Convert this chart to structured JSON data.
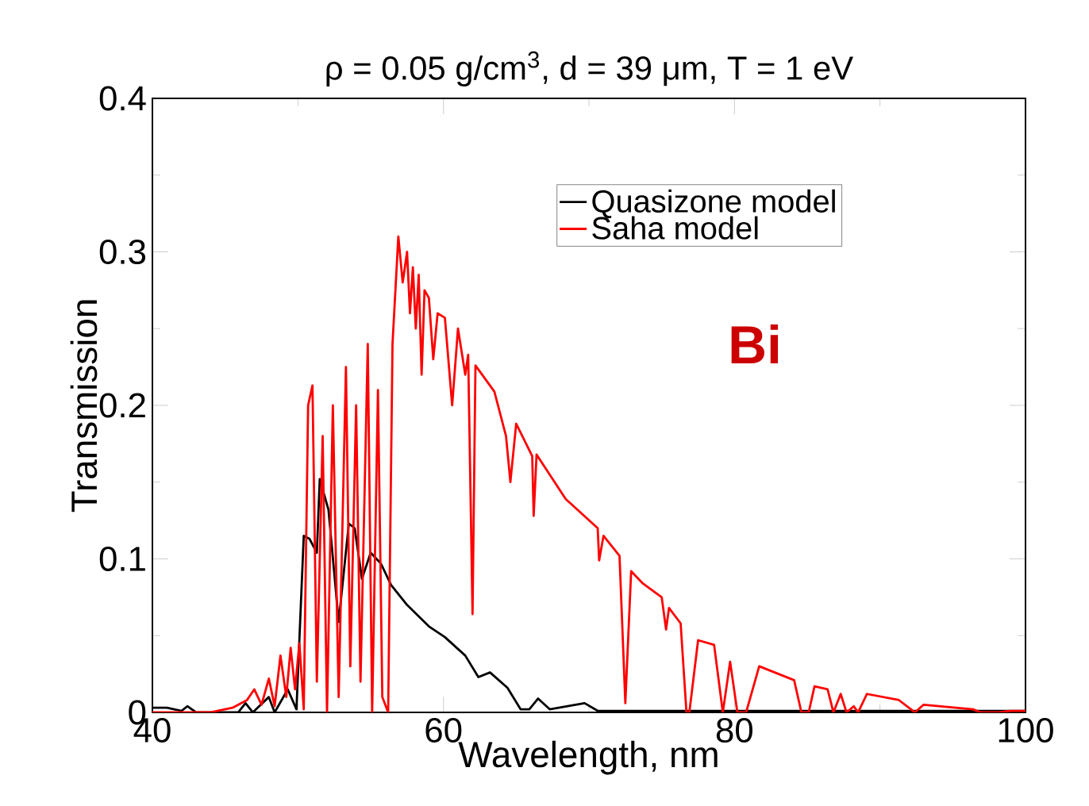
{
  "chart_data": {
    "type": "line",
    "title": "ρ = 0.05 g/cm$^{3}$, d = 39 μm, T = 1 eV",
    "xlabel": "Wavelength, nm",
    "ylabel": "Transmission",
    "annotations": [
      "Bi"
    ],
    "xlim": [
      40,
      100
    ],
    "ylim": [
      0,
      0.4
    ],
    "xticks": [
      40,
      60,
      80,
      100
    ],
    "yticks": [
      0,
      0.1,
      0.2,
      0.3,
      0.4
    ],
    "legend": "top right",
    "grid": false,
    "marker": "none",
    "line_style": "solid",
    "series": [
      {
        "name": "Quasizone model",
        "color": "#000000",
        "x": [
          40,
          41,
          42,
          42.4,
          43,
          45.9,
          46.4,
          46.9,
          48.0,
          48.4,
          49.3,
          49.9,
          50.4,
          50.8,
          51.3,
          51.5,
          52.1,
          52.8,
          53.5,
          53.9,
          54.4,
          55.0,
          55.7,
          56.4,
          57.5,
          59.0,
          60.1,
          61.5,
          62.4,
          63.2,
          64.4,
          65.3,
          65.9,
          66.5,
          67.3,
          69.7,
          70.6,
          80,
          90,
          100
        ],
        "values": [
          0.003,
          0.003,
          0.001,
          0.004,
          0,
          0,
          0.006,
          0,
          0.01,
          0,
          0.015,
          0.002,
          0.115,
          0.113,
          0.104,
          0.152,
          0.132,
          0.059,
          0.123,
          0.12,
          0.087,
          0.104,
          0.097,
          0.083,
          0.07,
          0.056,
          0.049,
          0.037,
          0.023,
          0.026,
          0.016,
          0.002,
          0.002,
          0.009,
          0.002,
          0.006,
          0.001,
          0.001,
          0.001,
          0.001
        ]
      },
      {
        "name": "Saha model",
        "color": "#ff0000",
        "x": [
          40,
          44,
          45.5,
          46.5,
          47,
          47.5,
          48,
          48.4,
          48.8,
          49.2,
          49.5,
          49.8,
          50.1,
          50.4,
          50.7,
          51.0,
          51.3,
          51.7,
          52.0,
          52.4,
          52.8,
          53.3,
          53.6,
          54.0,
          54.3,
          54.8,
          55.1,
          55.5,
          55.8,
          56.2,
          56.5,
          56.9,
          57.2,
          57.5,
          57.7,
          57.9,
          58.1,
          58.3,
          58.5,
          58.7,
          59.0,
          59.3,
          59.6,
          60.1,
          60.6,
          61.0,
          61.5,
          61.7,
          62.0,
          62.2,
          63.5,
          64.3,
          64.6,
          65.0,
          66.1,
          66.2,
          66.4,
          68.4,
          70.6,
          70.7,
          71.0,
          72.1,
          72.5,
          72.9,
          73.7,
          75.0,
          75.3,
          75.5,
          76.3,
          76.7,
          76.9,
          77.5,
          78.6,
          79.2,
          79.7,
          80.2,
          80.8,
          81.7,
          84.1,
          84.6,
          85.1,
          85.5,
          86.4,
          86.8,
          87.3,
          87.7,
          88.2,
          88.5,
          89.1,
          91.3,
          92.4,
          93.0,
          96.4,
          96.9,
          98.2,
          99.0,
          100
        ],
        "values": [
          0,
          0,
          0.003,
          0.008,
          0.015,
          0.005,
          0.022,
          0.004,
          0.037,
          0.01,
          0.042,
          0.015,
          0.045,
          0.002,
          0.2,
          0.213,
          0.02,
          0.18,
          0,
          0.2,
          0.01,
          0.225,
          0.03,
          0.2,
          0.02,
          0.24,
          0,
          0.21,
          0.01,
          0,
          0.24,
          0.31,
          0.28,
          0.3,
          0.26,
          0.29,
          0.25,
          0.285,
          0.22,
          0.275,
          0.27,
          0.23,
          0.26,
          0.257,
          0.2,
          0.25,
          0.22,
          0.233,
          0.064,
          0.226,
          0.209,
          0.18,
          0.15,
          0.188,
          0.167,
          0.128,
          0.168,
          0.139,
          0.12,
          0.099,
          0.115,
          0.102,
          0.006,
          0.092,
          0.084,
          0.075,
          0.054,
          0.068,
          0.058,
          0,
          0,
          0.047,
          0.044,
          0,
          0.033,
          0,
          0,
          0.03,
          0.021,
          0,
          0,
          0.017,
          0.015,
          0,
          0.012,
          0,
          0.004,
          0,
          0.012,
          0.008,
          0,
          0.005,
          0.002,
          0,
          0,
          0.001,
          0.001
        ]
      }
    ]
  }
}
